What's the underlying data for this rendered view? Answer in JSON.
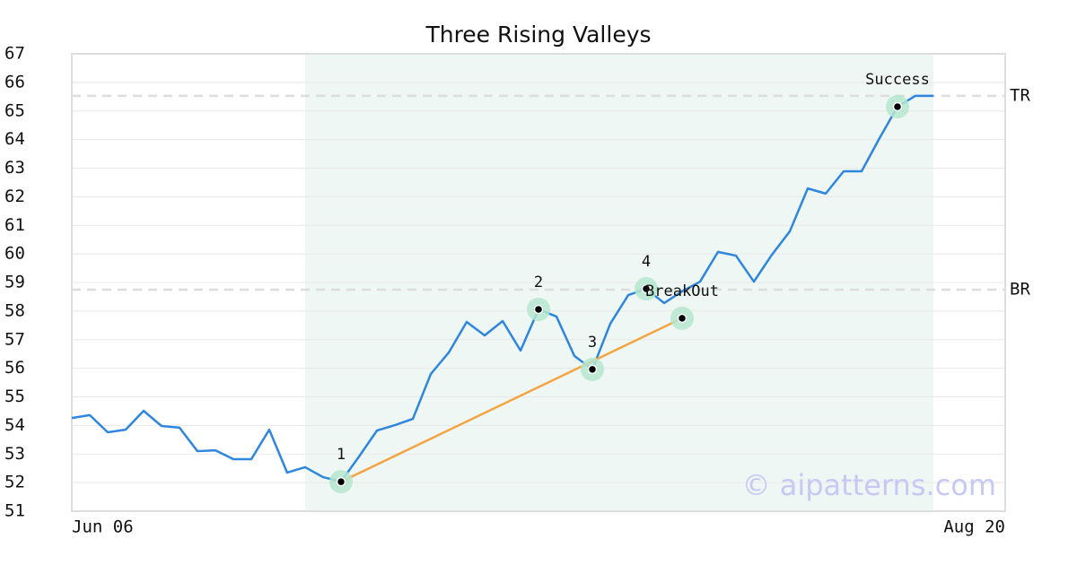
{
  "chart_data": {
    "type": "line",
    "title": "Three Rising Valleys",
    "categories": [
      "Jun 06",
      null,
      null,
      null,
      null,
      null,
      null,
      null,
      null,
      null,
      null,
      null,
      null,
      null,
      null,
      null,
      null,
      null,
      null,
      null,
      null,
      null,
      null,
      null,
      null,
      null,
      null,
      null,
      null,
      null,
      null,
      null,
      null,
      null,
      null,
      null,
      null,
      null,
      null,
      null,
      null,
      null,
      null,
      null,
      null,
      null,
      null,
      null,
      null,
      null,
      null,
      null,
      "Aug 20"
    ],
    "series": [
      {
        "color": "#2e86de",
        "values": [
          54.26,
          54.36,
          53.76,
          53.85,
          54.51,
          53.98,
          53.92,
          53.1,
          53.13,
          52.82,
          52.82,
          53.85,
          52.35,
          52.54,
          52.19,
          52.04,
          52.91,
          53.82,
          54.01,
          54.23,
          55.8,
          56.55,
          57.62,
          57.15,
          57.65,
          56.62,
          58.06,
          57.81,
          56.43,
          55.96,
          57.56,
          58.56,
          58.78,
          58.28,
          58.69,
          59.03,
          60.07,
          59.94,
          59.03,
          59.97,
          60.79,
          62.29,
          62.11,
          62.89,
          62.89,
          64.05,
          65.15,
          65.53,
          65.53,
          null,
          null,
          null,
          null
        ]
      }
    ],
    "annotations": [
      {
        "label": "1",
        "at": 15,
        "value": 52.03
      },
      {
        "label": "2",
        "at": 26,
        "value": 58.06
      },
      {
        "label": "3",
        "at": 29,
        "value": 55.96
      },
      {
        "label": "4",
        "at": 32,
        "value": 58.78
      },
      {
        "label": "BreakOut",
        "at": 34,
        "value": 57.75
      },
      {
        "label": "Success",
        "at": 46,
        "value": 65.15
      }
    ],
    "trendline": {
      "from": 0,
      "to": 4,
      "color": "#f4a442"
    },
    "reference_lines": [
      {
        "label": "TR",
        "value": 65.53
      },
      {
        "label": "BR",
        "value": 58.75
      }
    ],
    "highlight": [
      13,
      48
    ],
    "watermark": "© aipatterns.com",
    "ylim": [
      51,
      67
    ],
    "yticks": [
      51,
      52,
      53,
      54,
      55,
      56,
      57,
      58,
      59,
      60,
      61,
      62,
      63,
      64,
      65,
      66,
      67
    ],
    "grid": true
  }
}
